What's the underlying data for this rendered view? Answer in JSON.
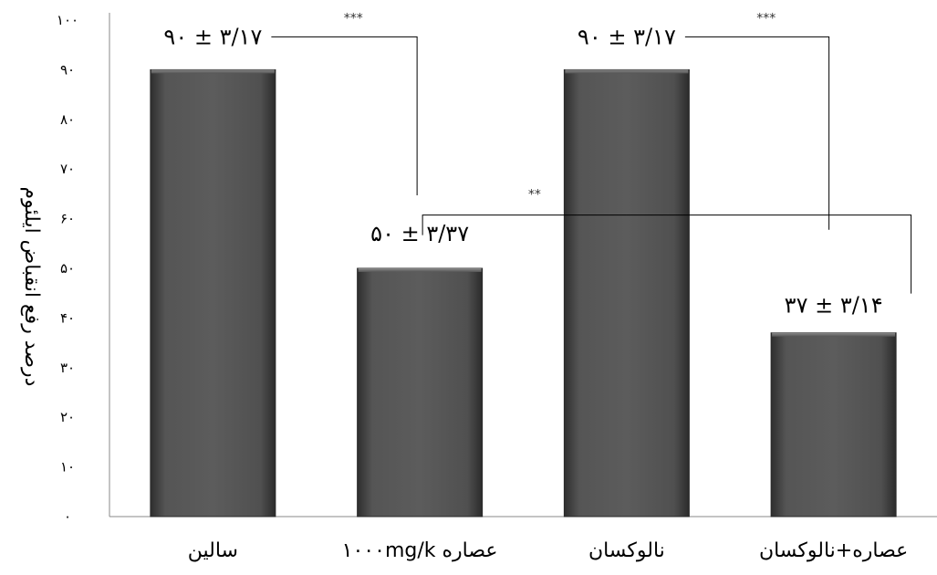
{
  "chart_data": {
    "type": "bar",
    "ylabel": "درصد رفع انقباض ایلئوم",
    "ylim": [
      0,
      100
    ],
    "yticks": [
      0,
      10,
      20,
      30,
      40,
      50,
      60,
      70,
      80,
      90,
      100
    ],
    "ytick_labels": [
      "۰",
      "۱۰",
      "۲۰",
      "۳۰",
      "۴۰",
      "۵۰",
      "۶۰",
      "۷۰",
      "۸۰",
      "۹۰",
      "۱۰۰"
    ],
    "categories": [
      "سالین",
      "عصاره ۱۰۰۰mg/k",
      "نالوکسان",
      "عصاره+نالوکسان"
    ],
    "values": [
      90,
      50,
      90,
      37
    ],
    "data_labels": [
      "۹۰ ± ۳/۱۷",
      "۵۰ ± ۳/۳۷",
      "۹۰ ± ۳/۱۷",
      "۳۷ ± ۳/۱۴"
    ],
    "significance": [
      {
        "from": 0,
        "to": 1,
        "label": "***"
      },
      {
        "from": 2,
        "to": 3,
        "label": "***"
      },
      {
        "from": 1,
        "to": 3,
        "label": "**"
      }
    ],
    "grid": false,
    "bar_color": "#4a4a4a"
  }
}
